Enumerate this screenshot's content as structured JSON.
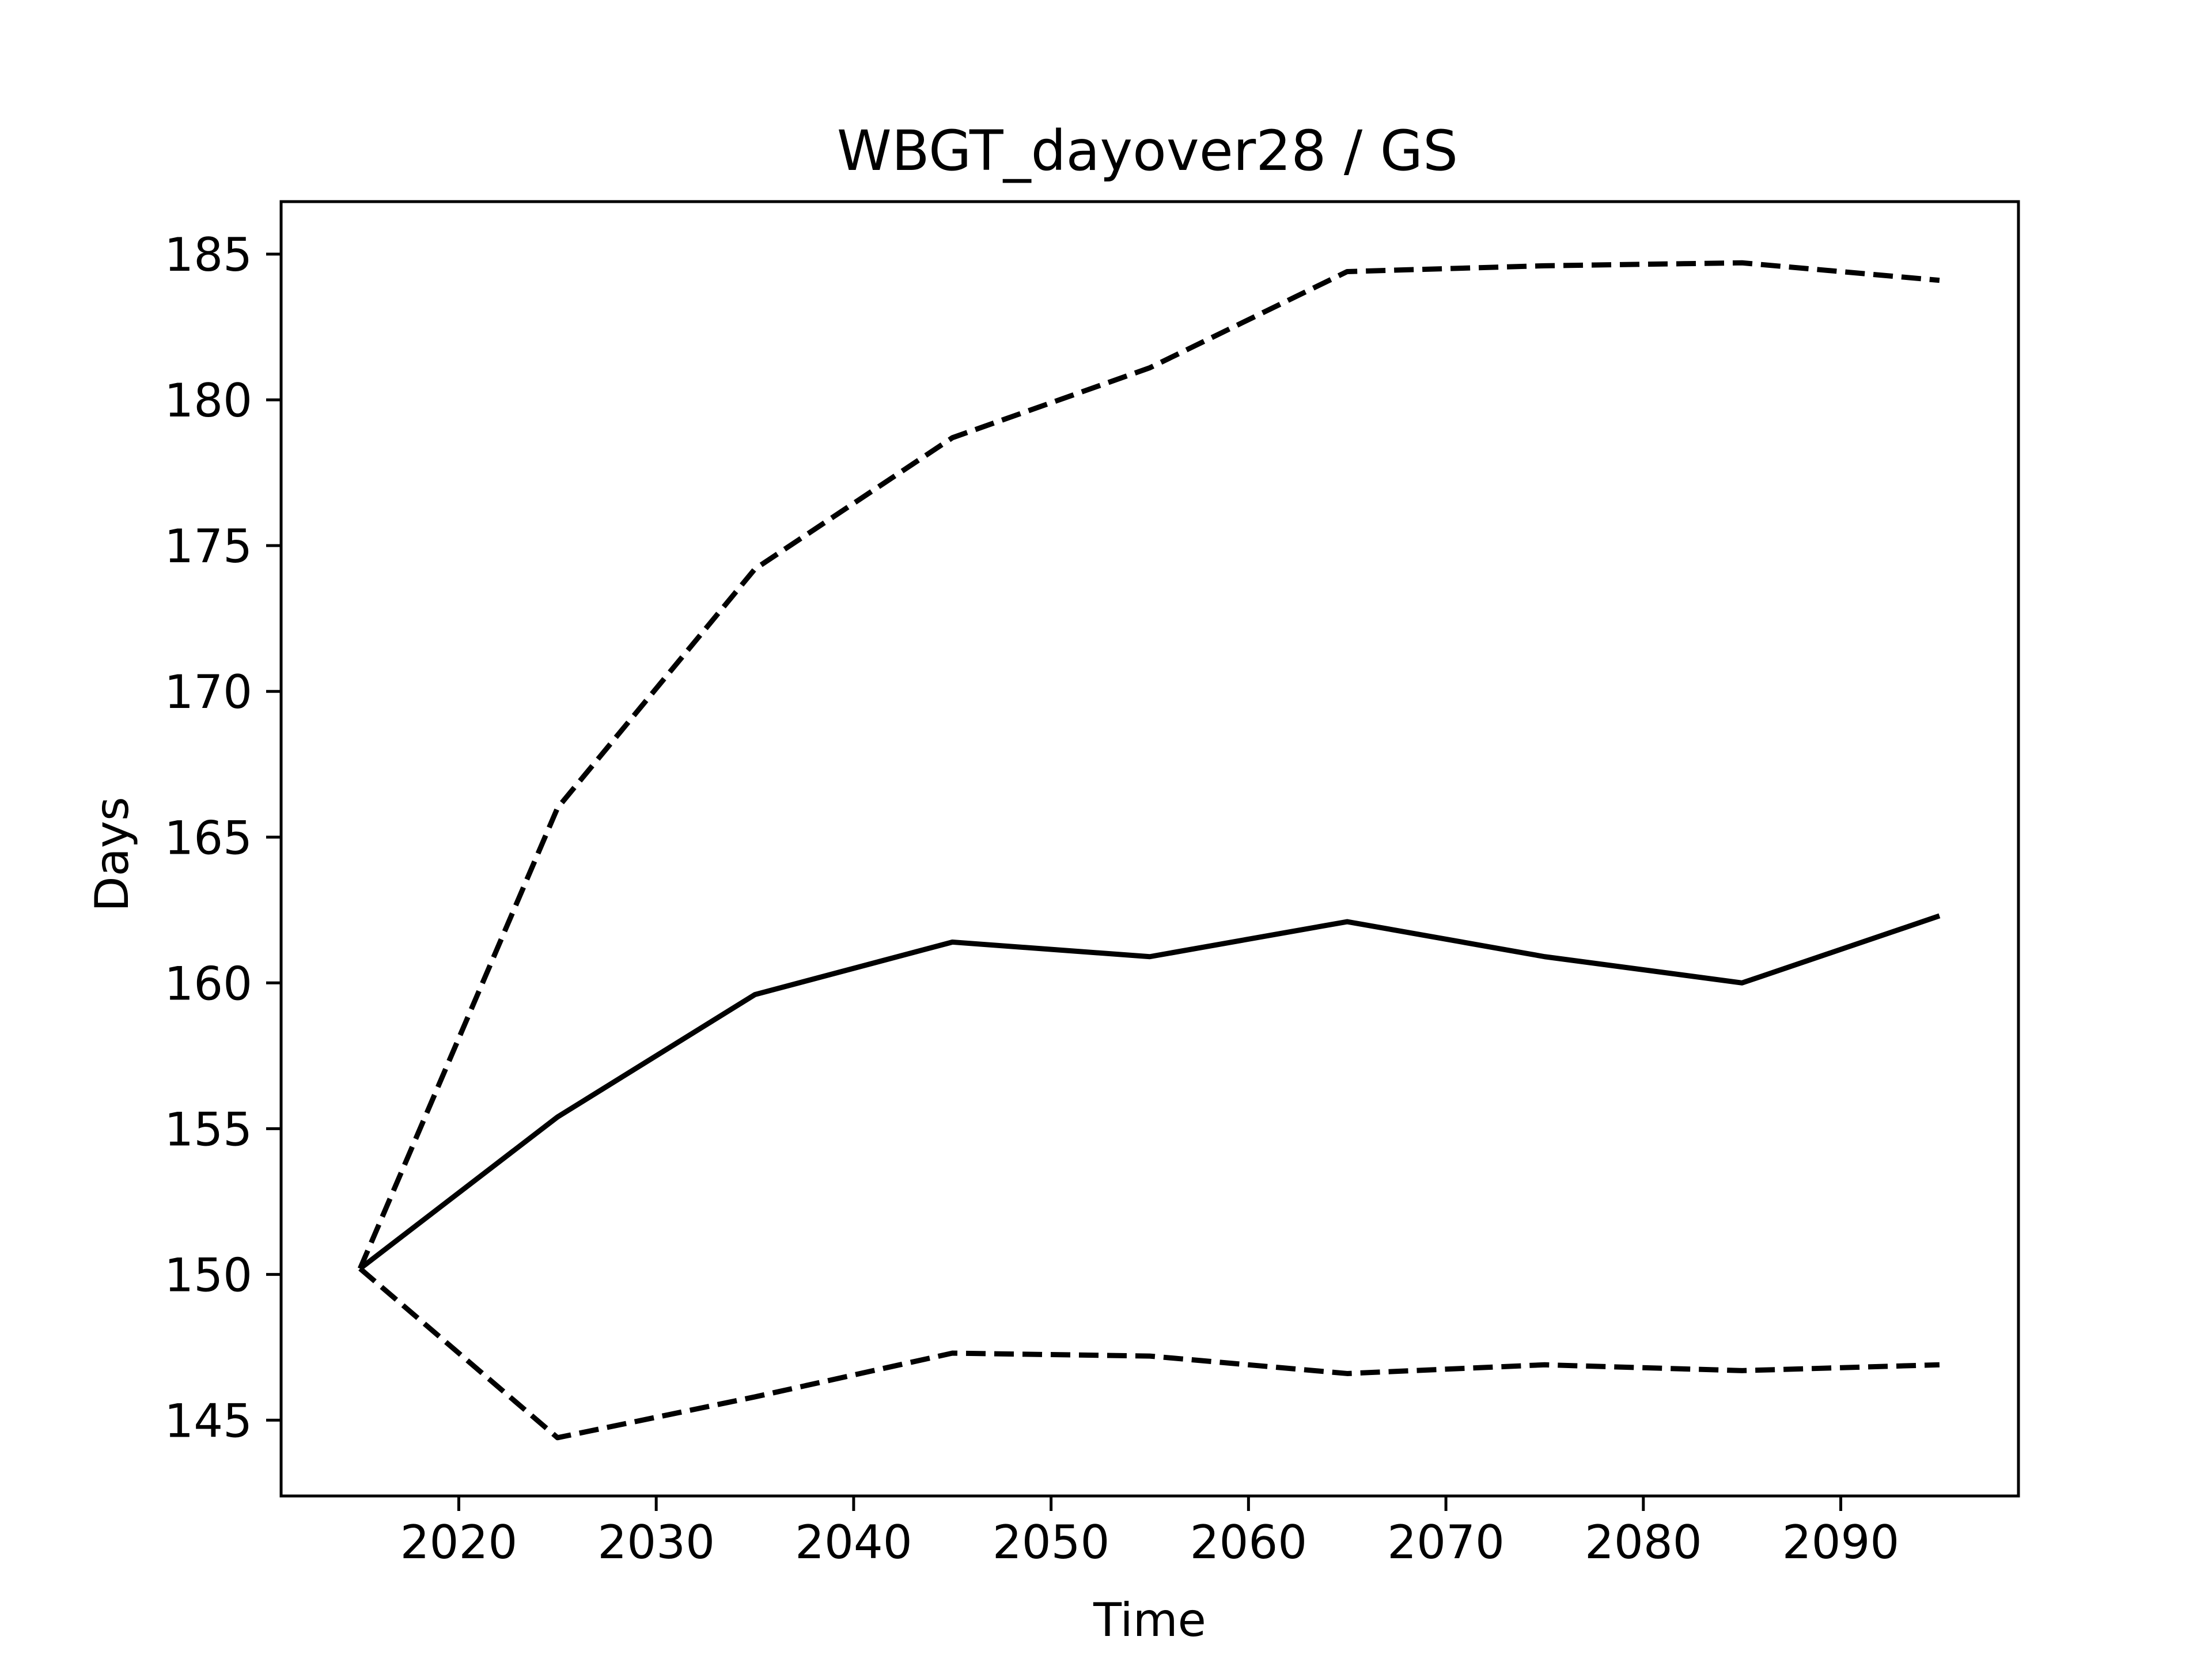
{
  "chart_data": {
    "type": "line",
    "title": "WBGT_dayover28 / GS",
    "xlabel": "Time",
    "ylabel": "Days",
    "xlim": [
      2011,
      2099
    ],
    "ylim": [
      142.4,
      186.8
    ],
    "xticks": [
      2020,
      2030,
      2040,
      2050,
      2060,
      2070,
      2080,
      2090
    ],
    "yticks": [
      145,
      150,
      155,
      160,
      165,
      170,
      175,
      180,
      185
    ],
    "grid": false,
    "legend": "none",
    "x": [
      2015,
      2025,
      2035,
      2045,
      2055,
      2065,
      2075,
      2085,
      2095
    ],
    "series": [
      {
        "style": "solid",
        "color": "#000000",
        "values": [
          150.2,
          155.4,
          159.6,
          161.4,
          160.9,
          162.1,
          160.9,
          160.0,
          162.3
        ]
      },
      {
        "style": "dashed",
        "color": "#000000",
        "values": [
          150.2,
          166.0,
          174.2,
          178.7,
          181.1,
          184.4,
          184.6,
          184.7,
          184.1
        ]
      },
      {
        "style": "dashed",
        "color": "#000000",
        "values": [
          150.2,
          144.4,
          145.8,
          147.3,
          147.2,
          146.6,
          146.9,
          146.7,
          146.9
        ]
      }
    ]
  }
}
